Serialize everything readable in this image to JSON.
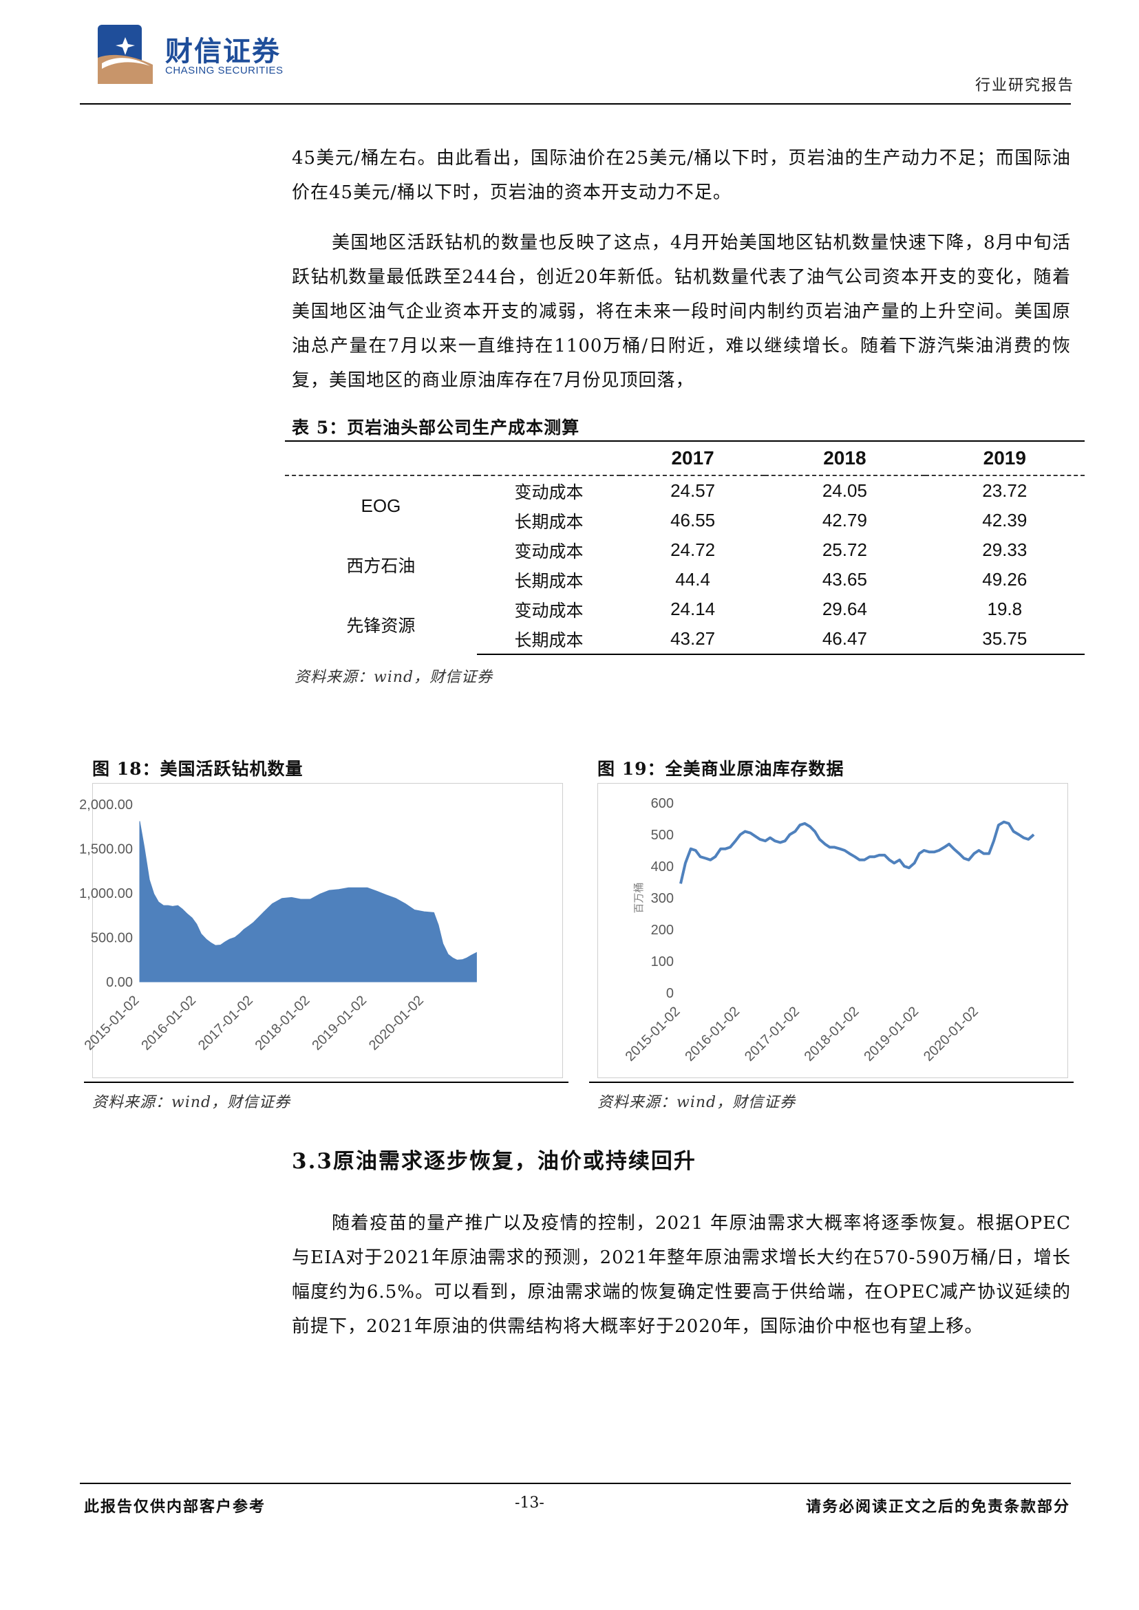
{
  "header": {
    "brand_cn": "财信证券",
    "brand_en": "CHASING SECURITIES",
    "report_type": "行业研究报告",
    "colors": {
      "brand": "#1f4e9a",
      "accent": "#c8956a"
    }
  },
  "paragraphs": {
    "p1": "45美元/桶左右。由此看出，国际油价在25美元/桶以下时，页岩油的生产动力不足；而国际油价在45美元/桶以下时，页岩油的资本开支动力不足。",
    "p2": "美国地区活跃钻机的数量也反映了这点，4月开始美国地区钻机数量快速下降，8月中旬活跃钻机数量最低跌至244台，创近20年新低。钻机数量代表了油气公司资本开支的变化，随着美国地区油气企业资本开支的减弱，将在未来一段时间内制约页岩油产量的上升空间。美国原油总产量在7月以来一直维持在1100万桶/日附近，难以继续增长。随着下游汽柴油消费的恢复，美国地区的商业原油库存在7月份见顶回落，"
  },
  "table": {
    "caption": "表 5：页岩油头部公司生产成本测算",
    "years": [
      "2017",
      "2018",
      "2019"
    ],
    "companies": [
      {
        "name": "EOG",
        "rows": [
          {
            "label": "变动成本",
            "values": [
              "24.57",
              "24.05",
              "23.72"
            ]
          },
          {
            "label": "长期成本",
            "values": [
              "46.55",
              "42.79",
              "42.39"
            ]
          }
        ]
      },
      {
        "name": "西方石油",
        "rows": [
          {
            "label": "变动成本",
            "values": [
              "24.72",
              "25.72",
              "29.33"
            ]
          },
          {
            "label": "长期成本",
            "values": [
              "44.4",
              "43.65",
              "49.26"
            ]
          }
        ]
      },
      {
        "name": "先锋资源",
        "rows": [
          {
            "label": "变动成本",
            "values": [
              "24.14",
              "29.64",
              "19.8"
            ]
          },
          {
            "label": "长期成本",
            "values": [
              "43.27",
              "46.47",
              "35.75"
            ]
          }
        ]
      }
    ],
    "source": "资料来源：wind，财信证券"
  },
  "figures": {
    "fig18": {
      "caption": "图 18：美国活跃钻机数量",
      "source": "资料来源：wind，财信证券"
    },
    "fig19": {
      "caption": "图 19：全美商业原油库存数据",
      "source": "资料来源：wind，财信证券"
    }
  },
  "chart_data": [
    {
      "type": "area",
      "title": "",
      "color": "#4f81bd",
      "xlabel": "",
      "ylabel": "",
      "ylim": [
        0,
        2000
      ],
      "yticks": [
        "2,000.00",
        "1,500.00",
        "1,000.00",
        "500.00",
        "0.00"
      ],
      "xticks": [
        "2015-01-02",
        "2016-01-02",
        "2017-01-02",
        "2018-01-02",
        "2019-01-02",
        "2020-01-02"
      ],
      "grid": false,
      "x": [
        2015.0,
        2015.08,
        2015.17,
        2015.25,
        2015.33,
        2015.42,
        2015.5,
        2015.58,
        2015.67,
        2015.75,
        2015.83,
        2015.92,
        2016.0,
        2016.08,
        2016.17,
        2016.25,
        2016.33,
        2016.42,
        2016.5,
        2016.58,
        2016.67,
        2016.75,
        2016.83,
        2016.92,
        2017.0,
        2017.17,
        2017.33,
        2017.5,
        2017.67,
        2017.83,
        2018.0,
        2018.17,
        2018.33,
        2018.5,
        2018.67,
        2018.83,
        2019.0,
        2019.17,
        2019.33,
        2019.5,
        2019.67,
        2019.83,
        2020.0,
        2020.17,
        2020.25,
        2020.33,
        2020.42,
        2020.5,
        2020.58,
        2020.67,
        2020.75,
        2020.83,
        2020.92
      ],
      "values": [
        1810,
        1520,
        1150,
        990,
        900,
        860,
        860,
        850,
        860,
        820,
        770,
        720,
        650,
        540,
        480,
        440,
        410,
        415,
        450,
        480,
        500,
        540,
        590,
        630,
        670,
        780,
        880,
        940,
        950,
        930,
        930,
        990,
        1030,
        1040,
        1060,
        1060,
        1060,
        1020,
        980,
        940,
        880,
        810,
        790,
        780,
        640,
        430,
        310,
        270,
        245,
        250,
        270,
        300,
        330
      ]
    },
    {
      "type": "line",
      "title": "",
      "color": "#4f81bd",
      "xlabel": "",
      "ylabel": "百万桶",
      "ylim": [
        0,
        600
      ],
      "yticks": [
        "600",
        "500",
        "400",
        "300",
        "200",
        "100",
        "0"
      ],
      "xticks": [
        "2015-01-02",
        "2016-01-02",
        "2017-01-02",
        "2018-01-02",
        "2019-01-02",
        "2020-01-02"
      ],
      "grid": false,
      "x": [
        2015.0,
        2015.08,
        2015.17,
        2015.25,
        2015.33,
        2015.42,
        2015.5,
        2015.58,
        2015.67,
        2015.75,
        2015.83,
        2015.92,
        2016.0,
        2016.08,
        2016.17,
        2016.25,
        2016.33,
        2016.42,
        2016.5,
        2016.58,
        2016.67,
        2016.75,
        2016.83,
        2016.92,
        2017.0,
        2017.08,
        2017.17,
        2017.25,
        2017.33,
        2017.42,
        2017.5,
        2017.58,
        2017.67,
        2017.75,
        2017.83,
        2017.92,
        2018.0,
        2018.08,
        2018.17,
        2018.25,
        2018.33,
        2018.42,
        2018.5,
        2018.58,
        2018.67,
        2018.75,
        2018.83,
        2018.92,
        2019.0,
        2019.08,
        2019.17,
        2019.25,
        2019.33,
        2019.42,
        2019.5,
        2019.58,
        2019.67,
        2019.75,
        2019.83,
        2019.92,
        2020.0,
        2020.08,
        2020.17,
        2020.25,
        2020.33,
        2020.42,
        2020.5,
        2020.58,
        2020.67,
        2020.75,
        2020.83,
        2020.92
      ],
      "values": [
        345,
        410,
        455,
        450,
        430,
        425,
        420,
        430,
        455,
        455,
        460,
        480,
        500,
        510,
        505,
        495,
        485,
        480,
        490,
        480,
        475,
        480,
        500,
        510,
        530,
        535,
        525,
        510,
        485,
        470,
        460,
        460,
        455,
        450,
        440,
        430,
        420,
        420,
        430,
        430,
        435,
        435,
        420,
        410,
        420,
        400,
        395,
        410,
        440,
        450,
        445,
        445,
        450,
        460,
        470,
        455,
        440,
        425,
        420,
        440,
        450,
        440,
        440,
        480,
        530,
        540,
        535,
        510,
        500,
        490,
        485,
        500
      ]
    }
  ],
  "section": {
    "title": "3.3原油需求逐步恢复，油价或持续回升",
    "paragraph": "随着疫苗的量产推广以及疫情的控制，2021 年原油需求大概率将逐季恢复。根据OPEC与EIA对于2021年原油需求的预测，2021年整年原油需求增长大约在570-590万桶/日，增长幅度约为6.5%。可以看到，原油需求端的恢复确定性要高于供给端，在OPEC减产协议延续的前提下，2021年原油的供需结构将大概率好于2020年，国际油价中枢也有望上移。"
  },
  "footer": {
    "left": "此报告仅供内部客户参考",
    "page_number": "-13-",
    "right": "请务必阅读正文之后的免责条款部分"
  }
}
